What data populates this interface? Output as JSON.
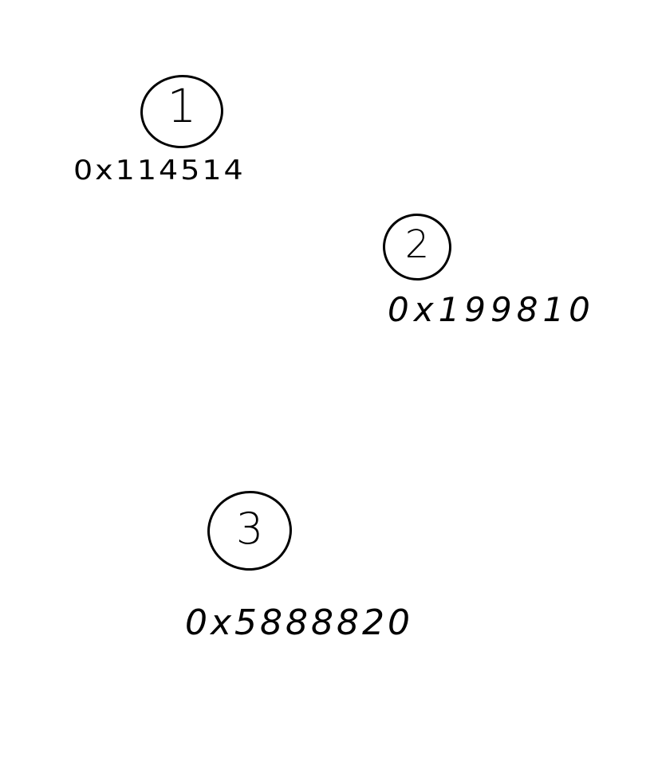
{
  "markers": [
    {
      "number": "1",
      "address": "0x114514"
    },
    {
      "number": "2",
      "address": "0x199810"
    },
    {
      "number": "3",
      "address": "0x5888820"
    }
  ]
}
